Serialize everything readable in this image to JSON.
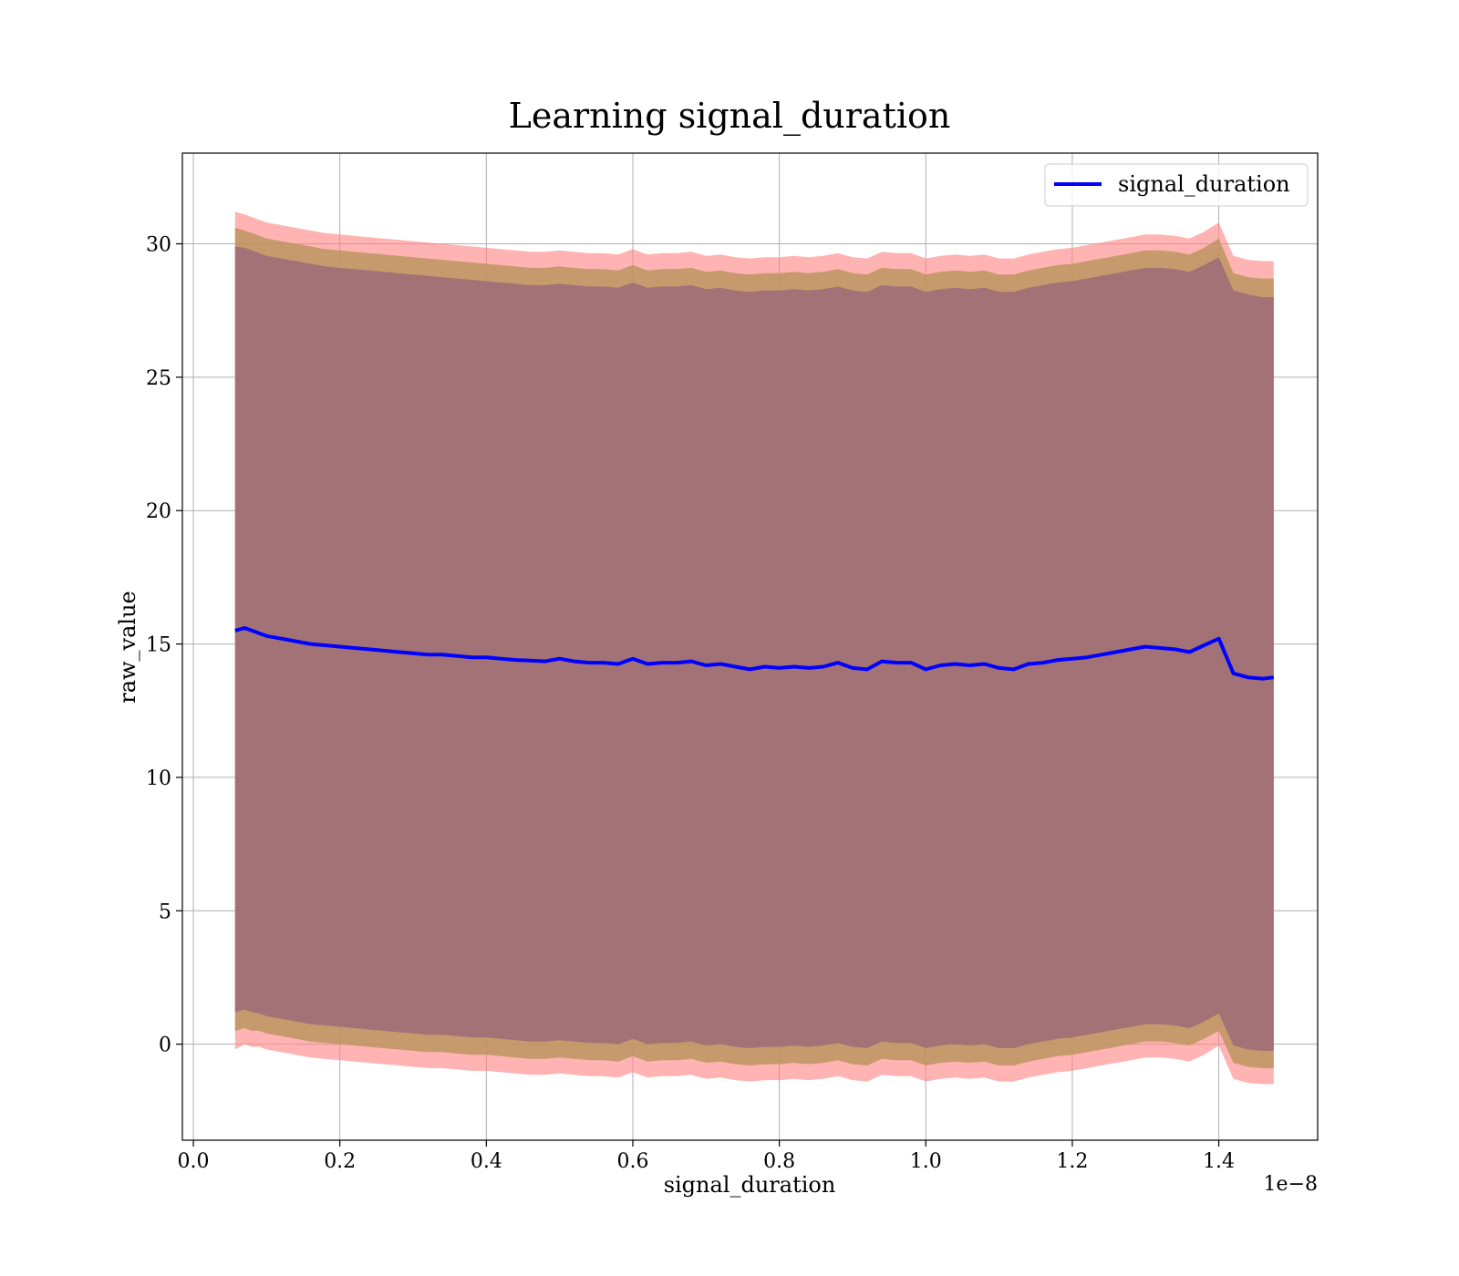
{
  "chart_data": {
    "type": "line",
    "title": "Learning signal_duration",
    "xlabel": "signal_duration",
    "ylabel": "raw_value",
    "x_offset_label": "1e−8",
    "xlim": [
      -0.015,
      1.535
    ],
    "ylim": [
      -3.6,
      33.4
    ],
    "xticks": [
      0.0,
      0.2,
      0.4,
      0.6,
      0.8,
      1.0,
      1.2,
      1.4
    ],
    "xtick_labels": [
      "0.0",
      "0.2",
      "0.4",
      "0.6",
      "0.8",
      "1.0",
      "1.2",
      "1.4"
    ],
    "yticks": [
      0,
      5,
      10,
      15,
      20,
      25,
      30
    ],
    "ytick_labels": [
      "0",
      "5",
      "10",
      "15",
      "20",
      "25",
      "30"
    ],
    "grid": true,
    "legend": {
      "position": "top-right",
      "entries": [
        "signal_duration"
      ]
    },
    "colors": {
      "line": "#0000ff",
      "band_outer": "#ff8080",
      "band_middle": "#b8935a",
      "band_inner": "#a07078"
    },
    "series": [
      {
        "name": "signal_duration",
        "x": [
          0.057,
          0.07,
          0.08,
          0.09,
          0.1,
          0.12,
          0.14,
          0.16,
          0.18,
          0.2,
          0.22,
          0.24,
          0.26,
          0.28,
          0.3,
          0.32,
          0.34,
          0.36,
          0.38,
          0.4,
          0.42,
          0.44,
          0.46,
          0.48,
          0.5,
          0.52,
          0.54,
          0.56,
          0.58,
          0.6,
          0.62,
          0.64,
          0.66,
          0.68,
          0.7,
          0.72,
          0.74,
          0.76,
          0.78,
          0.8,
          0.82,
          0.84,
          0.86,
          0.88,
          0.9,
          0.92,
          0.94,
          0.96,
          0.98,
          1.0,
          1.02,
          1.04,
          1.06,
          1.08,
          1.1,
          1.12,
          1.14,
          1.16,
          1.18,
          1.2,
          1.22,
          1.24,
          1.26,
          1.28,
          1.3,
          1.32,
          1.34,
          1.36,
          1.38,
          1.4,
          1.42,
          1.44,
          1.46,
          1.475
        ],
        "values": [
          15.5,
          15.6,
          15.5,
          15.4,
          15.3,
          15.2,
          15.1,
          15.0,
          14.95,
          14.9,
          14.85,
          14.8,
          14.75,
          14.7,
          14.65,
          14.6,
          14.6,
          14.55,
          14.5,
          14.5,
          14.45,
          14.4,
          14.38,
          14.35,
          14.45,
          14.35,
          14.3,
          14.3,
          14.25,
          14.45,
          14.25,
          14.3,
          14.3,
          14.35,
          14.2,
          14.25,
          14.15,
          14.05,
          14.15,
          14.1,
          14.15,
          14.1,
          14.15,
          14.3,
          14.1,
          14.05,
          14.35,
          14.3,
          14.3,
          14.05,
          14.2,
          14.25,
          14.2,
          14.25,
          14.1,
          14.05,
          14.25,
          14.3,
          14.4,
          14.45,
          14.5,
          14.6,
          14.7,
          14.8,
          14.9,
          14.85,
          14.8,
          14.7,
          14.95,
          15.2,
          13.9,
          13.75,
          13.7,
          13.75
        ]
      }
    ],
    "bands": [
      {
        "name": "outer",
        "upper": [
          31.2,
          31.1,
          31.0,
          30.9,
          30.8,
          30.7,
          30.6,
          30.5,
          30.4,
          30.35,
          30.3,
          30.25,
          30.2,
          30.15,
          30.1,
          30.05,
          30.0,
          29.95,
          29.9,
          29.85,
          29.8,
          29.75,
          29.7,
          29.7,
          29.75,
          29.7,
          29.65,
          29.65,
          29.6,
          29.8,
          29.6,
          29.65,
          29.65,
          29.7,
          29.55,
          29.6,
          29.5,
          29.45,
          29.5,
          29.5,
          29.55,
          29.5,
          29.55,
          29.65,
          29.5,
          29.45,
          29.7,
          29.65,
          29.65,
          29.45,
          29.55,
          29.6,
          29.55,
          29.6,
          29.45,
          29.45,
          29.6,
          29.7,
          29.8,
          29.85,
          29.95,
          30.05,
          30.15,
          30.25,
          30.35,
          30.35,
          30.3,
          30.2,
          30.45,
          30.8,
          29.55,
          29.4,
          29.35,
          29.35
        ],
        "lower": [
          -0.2,
          0.0,
          -0.1,
          -0.1,
          -0.2,
          -0.3,
          -0.4,
          -0.5,
          -0.55,
          -0.6,
          -0.65,
          -0.7,
          -0.75,
          -0.8,
          -0.85,
          -0.9,
          -0.9,
          -0.95,
          -1.0,
          -1.0,
          -1.05,
          -1.1,
          -1.15,
          -1.15,
          -1.1,
          -1.15,
          -1.2,
          -1.2,
          -1.25,
          -1.05,
          -1.25,
          -1.2,
          -1.2,
          -1.15,
          -1.3,
          -1.25,
          -1.35,
          -1.4,
          -1.35,
          -1.35,
          -1.3,
          -1.35,
          -1.3,
          -1.2,
          -1.35,
          -1.4,
          -1.15,
          -1.2,
          -1.2,
          -1.4,
          -1.3,
          -1.25,
          -1.3,
          -1.25,
          -1.4,
          -1.4,
          -1.25,
          -1.15,
          -1.05,
          -1.0,
          -0.9,
          -0.8,
          -0.7,
          -0.6,
          -0.5,
          -0.5,
          -0.55,
          -0.65,
          -0.4,
          -0.05,
          -1.3,
          -1.45,
          -1.5,
          -1.5
        ]
      },
      {
        "name": "middle",
        "upper": [
          30.6,
          30.5,
          30.4,
          30.3,
          30.2,
          30.1,
          30.0,
          29.9,
          29.8,
          29.75,
          29.7,
          29.65,
          29.6,
          29.55,
          29.5,
          29.45,
          29.4,
          29.35,
          29.3,
          29.25,
          29.2,
          29.15,
          29.1,
          29.1,
          29.15,
          29.1,
          29.05,
          29.05,
          29.0,
          29.2,
          29.0,
          29.05,
          29.05,
          29.1,
          28.95,
          29.0,
          28.9,
          28.85,
          28.9,
          28.9,
          28.95,
          28.9,
          28.95,
          29.05,
          28.9,
          28.85,
          29.1,
          29.05,
          29.05,
          28.85,
          28.95,
          29.0,
          28.95,
          29.0,
          28.85,
          28.85,
          29.0,
          29.1,
          29.2,
          29.25,
          29.35,
          29.45,
          29.55,
          29.65,
          29.75,
          29.75,
          29.7,
          29.6,
          29.85,
          30.2,
          28.9,
          28.75,
          28.7,
          28.7
        ],
        "lower": [
          0.5,
          0.6,
          0.5,
          0.5,
          0.4,
          0.3,
          0.2,
          0.1,
          0.05,
          0.0,
          -0.05,
          -0.1,
          -0.15,
          -0.2,
          -0.25,
          -0.3,
          -0.3,
          -0.35,
          -0.4,
          -0.4,
          -0.45,
          -0.5,
          -0.55,
          -0.55,
          -0.5,
          -0.55,
          -0.6,
          -0.6,
          -0.65,
          -0.45,
          -0.65,
          -0.6,
          -0.6,
          -0.55,
          -0.7,
          -0.65,
          -0.75,
          -0.8,
          -0.75,
          -0.75,
          -0.7,
          -0.75,
          -0.7,
          -0.6,
          -0.75,
          -0.8,
          -0.55,
          -0.6,
          -0.6,
          -0.8,
          -0.7,
          -0.65,
          -0.7,
          -0.65,
          -0.8,
          -0.8,
          -0.65,
          -0.55,
          -0.45,
          -0.4,
          -0.3,
          -0.2,
          -0.1,
          0.0,
          0.1,
          0.1,
          0.05,
          -0.05,
          0.2,
          0.5,
          -0.7,
          -0.85,
          -0.9,
          -0.9
        ]
      },
      {
        "name": "inner",
        "upper": [
          29.9,
          29.85,
          29.75,
          29.65,
          29.55,
          29.45,
          29.35,
          29.25,
          29.15,
          29.1,
          29.05,
          29.0,
          28.95,
          28.9,
          28.85,
          28.8,
          28.75,
          28.7,
          28.65,
          28.6,
          28.55,
          28.5,
          28.45,
          28.45,
          28.5,
          28.45,
          28.4,
          28.4,
          28.35,
          28.55,
          28.35,
          28.4,
          28.4,
          28.45,
          28.3,
          28.35,
          28.25,
          28.2,
          28.25,
          28.25,
          28.3,
          28.25,
          28.3,
          28.4,
          28.25,
          28.2,
          28.45,
          28.4,
          28.4,
          28.2,
          28.3,
          28.35,
          28.3,
          28.35,
          28.2,
          28.2,
          28.35,
          28.45,
          28.55,
          28.6,
          28.7,
          28.8,
          28.9,
          29.0,
          29.1,
          29.1,
          29.05,
          28.95,
          29.2,
          29.5,
          28.25,
          28.1,
          28.0,
          28.0
        ],
        "lower": [
          1.2,
          1.3,
          1.2,
          1.15,
          1.05,
          0.95,
          0.85,
          0.75,
          0.7,
          0.65,
          0.6,
          0.55,
          0.5,
          0.45,
          0.4,
          0.35,
          0.35,
          0.3,
          0.25,
          0.25,
          0.2,
          0.15,
          0.1,
          0.1,
          0.15,
          0.1,
          0.05,
          0.05,
          0.0,
          0.2,
          0.0,
          0.05,
          0.05,
          0.1,
          -0.05,
          0.0,
          -0.1,
          -0.15,
          -0.1,
          -0.1,
          -0.05,
          -0.1,
          -0.05,
          0.05,
          -0.1,
          -0.15,
          0.1,
          0.05,
          0.05,
          -0.15,
          -0.05,
          0.0,
          -0.05,
          0.0,
          -0.15,
          -0.15,
          0.0,
          0.1,
          0.2,
          0.25,
          0.35,
          0.45,
          0.55,
          0.65,
          0.75,
          0.75,
          0.7,
          0.6,
          0.85,
          1.15,
          -0.05,
          -0.2,
          -0.25,
          -0.25
        ]
      }
    ]
  }
}
